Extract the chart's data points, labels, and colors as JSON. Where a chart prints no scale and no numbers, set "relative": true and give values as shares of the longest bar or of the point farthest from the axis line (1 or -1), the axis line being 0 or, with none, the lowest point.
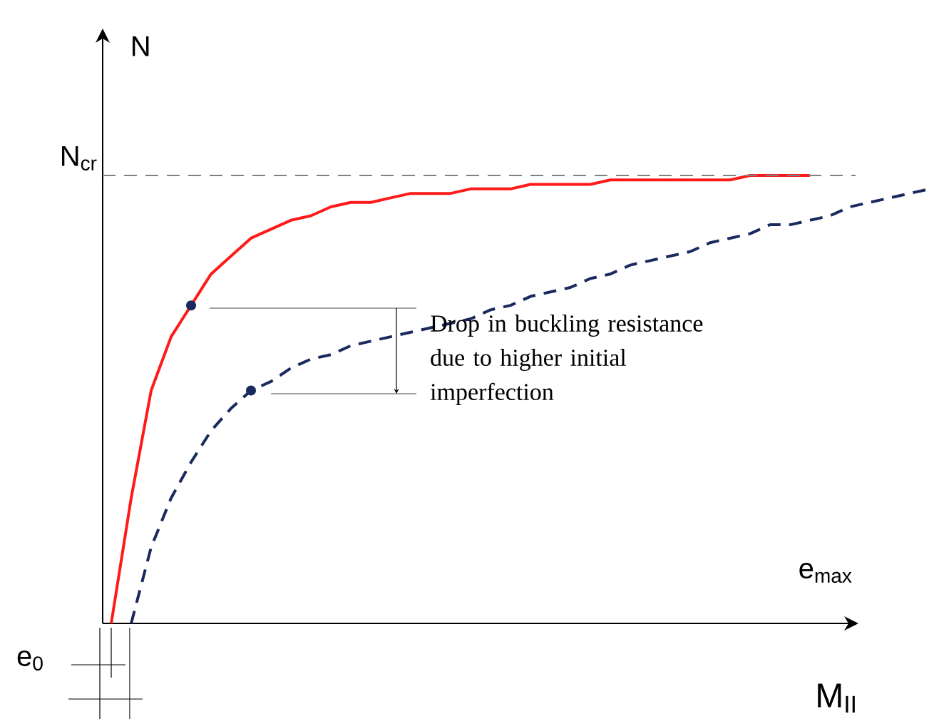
{
  "chart_data": {
    "type": "line",
    "relative": true,
    "ylabel": "N",
    "xlabel": "e$_{max}$",
    "categories": [
      null,
      null,
      null,
      null,
      null,
      null,
      null,
      null,
      null,
      null,
      null,
      null,
      null,
      null,
      null,
      null,
      null,
      null,
      null,
      null,
      null,
      null,
      null,
      null,
      null,
      null,
      null,
      null,
      null,
      null,
      null,
      null,
      null,
      null,
      null,
      null,
      null,
      null,
      null,
      null,
      null,
      null
    ],
    "series": [
      {
        "color": "#ff1a1a",
        "line_style": "solid",
        "values": [
          0,
          0.28,
          0.52,
          0.64,
          0.71,
          0.78,
          0.82,
          0.86,
          0.88,
          0.9,
          0.91,
          0.93,
          0.94,
          0.94,
          0.95,
          0.96,
          0.96,
          0.96,
          0.97,
          0.97,
          0.97,
          0.98,
          0.98,
          0.98,
          0.98,
          0.99,
          0.99,
          0.99,
          0.99,
          0.99,
          0.99,
          0.99,
          1.0,
          1.0,
          1.0,
          1.0,
          null,
          null,
          null,
          null,
          null,
          null
        ]
      },
      {
        "color": "#1a2a5e",
        "line_style": "dashed",
        "values": [
          null,
          0,
          0.17,
          0.28,
          0.36,
          0.43,
          0.48,
          0.52,
          0.54,
          0.57,
          0.59,
          0.6,
          0.62,
          0.63,
          0.64,
          0.65,
          0.66,
          0.67,
          0.68,
          0.7,
          0.71,
          0.73,
          0.74,
          0.75,
          0.77,
          0.78,
          0.8,
          0.81,
          0.82,
          0.83,
          0.85,
          0.86,
          0.87,
          0.89,
          0.89,
          0.9,
          0.91,
          0.93,
          0.94,
          0.95,
          0.96,
          0.97
        ]
      }
    ],
    "ref_lines": [
      {
        "axis": "y",
        "value": 1.0,
        "label": "N$_{cr}$",
        "color": "#808080",
        "line_style": "dashed"
      }
    ],
    "annotations": [
      "Drop in buckling resistance due to higher initial imperfection",
      "M$_{II}$",
      "e$_{0}$"
    ]
  }
}
